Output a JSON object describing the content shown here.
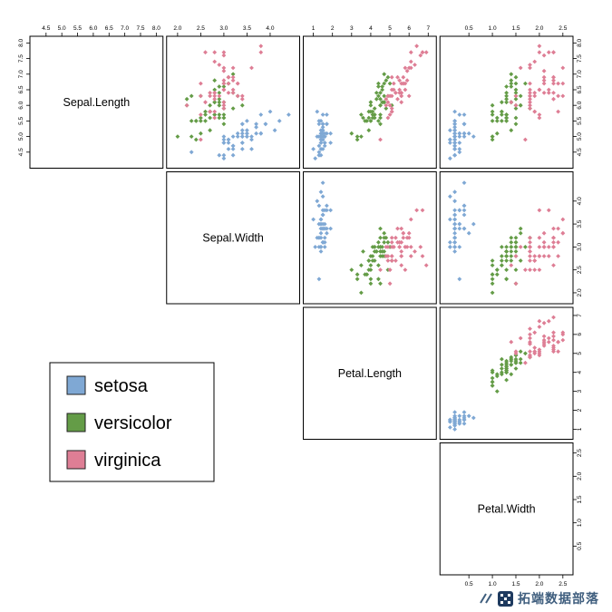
{
  "chart_data": {
    "type": "scatter",
    "subtype": "pairs-matrix-upper-triangle",
    "title": "",
    "grid": false,
    "marker": "diamond",
    "variables": [
      "Sepal.Length",
      "Sepal.Width",
      "Petal.Length",
      "Petal.Width"
    ],
    "ranges": [
      [
        4.16,
        8.04
      ],
      [
        1.88,
        4.52
      ],
      [
        0.76,
        7.14
      ],
      [
        0.0,
        2.6
      ]
    ],
    "tick_labels": [
      [
        "4.5",
        "5.0",
        "5.5",
        "6.0",
        "6.5",
        "7.0",
        "7.5",
        "8.0"
      ],
      [
        "2.0",
        "2.5",
        "3.0",
        "3.5",
        "4.0"
      ],
      [
        "1",
        "2",
        "3",
        "4",
        "5",
        "6",
        "7"
      ],
      [
        "0.5",
        "1.0",
        "1.5",
        "2.0",
        "2.5"
      ]
    ],
    "legend": {
      "position": "lower-left",
      "entries": [
        "setosa",
        "versicolor",
        "virginica"
      ]
    },
    "series": [
      {
        "name": "setosa",
        "color": "#7FA8D4",
        "points": [
          [
            5.1,
            3.5,
            1.4,
            0.2
          ],
          [
            4.9,
            3.0,
            1.4,
            0.2
          ],
          [
            4.7,
            3.2,
            1.3,
            0.2
          ],
          [
            4.6,
            3.1,
            1.5,
            0.2
          ],
          [
            5.0,
            3.6,
            1.4,
            0.2
          ],
          [
            5.4,
            3.9,
            1.7,
            0.4
          ],
          [
            4.6,
            3.4,
            1.4,
            0.3
          ],
          [
            5.0,
            3.4,
            1.5,
            0.2
          ],
          [
            4.4,
            2.9,
            1.4,
            0.2
          ],
          [
            4.9,
            3.1,
            1.5,
            0.1
          ],
          [
            5.4,
            3.7,
            1.5,
            0.2
          ],
          [
            4.8,
            3.4,
            1.6,
            0.2
          ],
          [
            4.8,
            3.0,
            1.4,
            0.1
          ],
          [
            4.3,
            3.0,
            1.1,
            0.1
          ],
          [
            5.8,
            4.0,
            1.2,
            0.2
          ],
          [
            5.7,
            4.4,
            1.5,
            0.4
          ],
          [
            5.4,
            3.9,
            1.3,
            0.4
          ],
          [
            5.1,
            3.5,
            1.4,
            0.3
          ],
          [
            5.7,
            3.8,
            1.7,
            0.3
          ],
          [
            5.1,
            3.8,
            1.5,
            0.3
          ],
          [
            5.4,
            3.4,
            1.7,
            0.2
          ],
          [
            5.1,
            3.7,
            1.5,
            0.4
          ],
          [
            4.6,
            3.6,
            1.0,
            0.2
          ],
          [
            5.1,
            3.3,
            1.7,
            0.5
          ],
          [
            4.8,
            3.4,
            1.9,
            0.2
          ],
          [
            5.0,
            3.0,
            1.6,
            0.2
          ],
          [
            5.0,
            3.4,
            1.6,
            0.4
          ],
          [
            5.2,
            3.5,
            1.5,
            0.2
          ],
          [
            5.2,
            3.4,
            1.4,
            0.2
          ],
          [
            4.7,
            3.2,
            1.6,
            0.2
          ],
          [
            4.8,
            3.1,
            1.6,
            0.2
          ],
          [
            5.4,
            3.4,
            1.5,
            0.4
          ],
          [
            5.2,
            4.1,
            1.5,
            0.1
          ],
          [
            5.5,
            4.2,
            1.4,
            0.2
          ],
          [
            4.9,
            3.1,
            1.5,
            0.2
          ],
          [
            5.0,
            3.2,
            1.2,
            0.2
          ],
          [
            5.5,
            3.5,
            1.3,
            0.2
          ],
          [
            4.9,
            3.6,
            1.4,
            0.1
          ],
          [
            4.4,
            3.0,
            1.3,
            0.2
          ],
          [
            5.1,
            3.4,
            1.5,
            0.2
          ],
          [
            5.0,
            3.5,
            1.3,
            0.3
          ],
          [
            4.5,
            2.3,
            1.3,
            0.3
          ],
          [
            4.4,
            3.2,
            1.3,
            0.2
          ],
          [
            5.0,
            3.5,
            1.6,
            0.6
          ],
          [
            5.1,
            3.8,
            1.9,
            0.4
          ],
          [
            4.8,
            3.0,
            1.4,
            0.3
          ],
          [
            5.1,
            3.8,
            1.6,
            0.2
          ],
          [
            4.6,
            3.2,
            1.4,
            0.2
          ],
          [
            5.3,
            3.7,
            1.5,
            0.2
          ],
          [
            5.0,
            3.3,
            1.4,
            0.2
          ]
        ]
      },
      {
        "name": "versicolor",
        "color": "#649C47",
        "points": [
          [
            7.0,
            3.2,
            4.7,
            1.4
          ],
          [
            6.4,
            3.2,
            4.5,
            1.5
          ],
          [
            6.9,
            3.1,
            4.9,
            1.5
          ],
          [
            5.5,
            2.3,
            4.0,
            1.3
          ],
          [
            6.5,
            2.8,
            4.6,
            1.5
          ],
          [
            5.7,
            2.8,
            4.5,
            1.3
          ],
          [
            6.3,
            3.3,
            4.7,
            1.6
          ],
          [
            4.9,
            2.4,
            3.3,
            1.0
          ],
          [
            6.6,
            2.9,
            4.6,
            1.3
          ],
          [
            5.2,
            2.7,
            3.9,
            1.4
          ],
          [
            5.0,
            2.0,
            3.5,
            1.0
          ],
          [
            5.9,
            3.0,
            4.2,
            1.5
          ],
          [
            6.0,
            2.2,
            4.0,
            1.0
          ],
          [
            6.1,
            2.9,
            4.7,
            1.4
          ],
          [
            5.6,
            2.9,
            3.6,
            1.3
          ],
          [
            6.7,
            3.1,
            4.4,
            1.4
          ],
          [
            5.6,
            3.0,
            4.5,
            1.5
          ],
          [
            5.8,
            2.7,
            4.1,
            1.0
          ],
          [
            6.2,
            2.2,
            4.5,
            1.5
          ],
          [
            5.6,
            2.5,
            3.9,
            1.1
          ],
          [
            5.9,
            3.2,
            4.8,
            1.8
          ],
          [
            6.1,
            2.8,
            4.0,
            1.3
          ],
          [
            6.3,
            2.5,
            4.9,
            1.5
          ],
          [
            6.1,
            2.8,
            4.7,
            1.2
          ],
          [
            6.4,
            2.9,
            4.3,
            1.3
          ],
          [
            6.6,
            3.0,
            4.4,
            1.4
          ],
          [
            6.8,
            2.8,
            4.8,
            1.4
          ],
          [
            6.7,
            3.0,
            5.0,
            1.7
          ],
          [
            6.0,
            2.9,
            4.5,
            1.5
          ],
          [
            5.7,
            2.6,
            3.5,
            1.0
          ],
          [
            5.5,
            2.4,
            3.8,
            1.1
          ],
          [
            5.5,
            2.4,
            3.7,
            1.0
          ],
          [
            5.8,
            2.7,
            3.9,
            1.2
          ],
          [
            6.0,
            2.7,
            5.1,
            1.6
          ],
          [
            5.4,
            3.0,
            4.5,
            1.5
          ],
          [
            6.0,
            3.4,
            4.5,
            1.6
          ],
          [
            6.7,
            3.1,
            4.7,
            1.5
          ],
          [
            6.3,
            2.3,
            4.4,
            1.3
          ],
          [
            5.6,
            3.0,
            4.1,
            1.3
          ],
          [
            5.5,
            2.5,
            4.0,
            1.3
          ],
          [
            5.5,
            2.6,
            4.4,
            1.2
          ],
          [
            6.1,
            3.0,
            4.6,
            1.4
          ],
          [
            5.8,
            2.6,
            4.0,
            1.2
          ],
          [
            5.0,
            2.3,
            3.3,
            1.0
          ],
          [
            5.6,
            2.7,
            4.2,
            1.3
          ],
          [
            5.7,
            3.0,
            4.2,
            1.2
          ],
          [
            5.7,
            2.9,
            4.2,
            1.3
          ],
          [
            6.2,
            2.9,
            4.3,
            1.3
          ],
          [
            5.1,
            2.5,
            3.0,
            1.1
          ],
          [
            5.7,
            2.8,
            4.1,
            1.3
          ]
        ]
      },
      {
        "name": "virginica",
        "color": "#DE7E95",
        "points": [
          [
            6.3,
            3.3,
            6.0,
            2.5
          ],
          [
            5.8,
            2.7,
            5.1,
            1.9
          ],
          [
            7.1,
            3.0,
            5.9,
            2.1
          ],
          [
            6.3,
            2.9,
            5.6,
            1.8
          ],
          [
            6.5,
            3.0,
            5.8,
            2.2
          ],
          [
            7.6,
            3.0,
            6.6,
            2.1
          ],
          [
            4.9,
            2.5,
            4.5,
            1.7
          ],
          [
            7.3,
            2.9,
            6.3,
            1.8
          ],
          [
            6.7,
            2.5,
            5.8,
            1.8
          ],
          [
            7.2,
            3.6,
            6.1,
            2.5
          ],
          [
            6.5,
            3.2,
            5.1,
            2.0
          ],
          [
            6.4,
            2.7,
            5.3,
            1.9
          ],
          [
            6.8,
            3.0,
            5.5,
            2.1
          ],
          [
            5.7,
            2.5,
            5.0,
            2.0
          ],
          [
            5.8,
            2.8,
            5.1,
            2.4
          ],
          [
            6.4,
            3.2,
            5.3,
            2.3
          ],
          [
            6.5,
            3.0,
            5.5,
            1.8
          ],
          [
            7.7,
            3.8,
            6.7,
            2.2
          ],
          [
            7.7,
            2.6,
            6.9,
            2.3
          ],
          [
            6.0,
            2.2,
            5.0,
            1.5
          ],
          [
            6.9,
            3.2,
            5.7,
            2.3
          ],
          [
            5.6,
            2.8,
            4.9,
            2.0
          ],
          [
            7.7,
            2.8,
            6.7,
            2.0
          ],
          [
            6.3,
            2.7,
            4.9,
            1.8
          ],
          [
            6.7,
            3.3,
            5.7,
            2.1
          ],
          [
            7.2,
            3.2,
            6.0,
            1.8
          ],
          [
            6.2,
            2.8,
            4.8,
            1.8
          ],
          [
            6.1,
            3.0,
            4.9,
            1.8
          ],
          [
            6.4,
            2.8,
            5.6,
            2.1
          ],
          [
            7.2,
            3.0,
            5.8,
            1.6
          ],
          [
            7.4,
            2.8,
            6.1,
            1.9
          ],
          [
            7.9,
            3.8,
            6.4,
            2.0
          ],
          [
            6.4,
            2.8,
            5.6,
            2.2
          ],
          [
            6.3,
            2.8,
            5.1,
            1.5
          ],
          [
            6.1,
            2.6,
            5.6,
            1.4
          ],
          [
            7.7,
            3.0,
            6.1,
            2.3
          ],
          [
            6.3,
            3.4,
            5.6,
            2.4
          ],
          [
            6.4,
            3.1,
            5.5,
            1.8
          ],
          [
            6.0,
            3.0,
            4.8,
            1.8
          ],
          [
            6.9,
            3.1,
            5.4,
            2.1
          ],
          [
            6.7,
            3.1,
            5.6,
            2.4
          ],
          [
            6.9,
            3.1,
            5.1,
            2.3
          ],
          [
            5.8,
            2.7,
            5.1,
            1.9
          ],
          [
            6.8,
            3.2,
            5.9,
            2.3
          ],
          [
            6.7,
            3.3,
            5.7,
            2.5
          ],
          [
            6.7,
            3.0,
            5.2,
            2.3
          ],
          [
            6.3,
            2.5,
            5.0,
            1.9
          ],
          [
            6.5,
            3.0,
            5.2,
            2.0
          ],
          [
            6.2,
            3.4,
            5.4,
            2.3
          ],
          [
            5.9,
            3.0,
            5.1,
            1.8
          ]
        ]
      }
    ]
  },
  "watermark": {
    "text": "拓端数据部落",
    "color": "#3F5E7E"
  }
}
